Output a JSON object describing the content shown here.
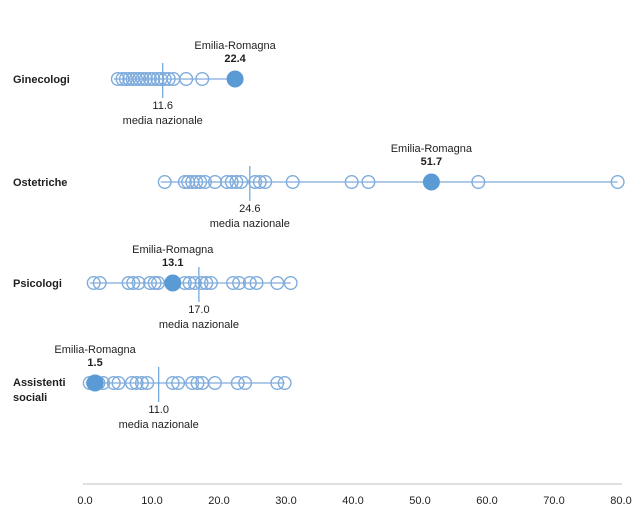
{
  "chart_data": {
    "type": "scatter",
    "subtype": "dot-strip-plot",
    "title": "",
    "highlight_series_name": "Emilia-Romagna",
    "mean_caption": "media nazionale",
    "x_axis": {
      "min": 0,
      "max": 80,
      "tick_step": 10,
      "tick_labels": [
        "0.0",
        "10.0",
        "20.0",
        "30.0",
        "40.0",
        "50.0",
        "60.0",
        "70.0",
        "80.0"
      ],
      "grid": false
    },
    "legend_position": "none",
    "colors": {
      "open_dot_stroke": "#7facdc",
      "row_line": "#7facdc",
      "mean_tick": "#5b9bd5",
      "highlight_fill": "#5b9bd5",
      "axis_line": "#bfbfbf",
      "text": "#1f1f1f"
    },
    "rows": [
      {
        "label_lines": [
          "Ginecologi"
        ],
        "highlight_name": "Emilia-Romagna",
        "highlight_value": 22.4,
        "highlight_label": "22.4",
        "mean_value": 11.6,
        "mean_label": "11.6",
        "open_values": [
          4.9,
          5.6,
          6.1,
          6.6,
          7.1,
          7.6,
          8.1,
          8.6,
          9.1,
          9.7,
          10.2,
          10.8,
          11.3,
          11.9,
          12.5,
          13.2,
          15.1,
          17.5
        ]
      },
      {
        "label_lines": [
          "Ostetriche"
        ],
        "highlight_name": "Emilia-Romagna",
        "highlight_value": 51.7,
        "highlight_label": "51.7",
        "mean_value": 24.6,
        "mean_label": "24.6",
        "open_values": [
          11.9,
          14.9,
          15.4,
          16.0,
          16.6,
          17.2,
          17.9,
          19.4,
          21.2,
          21.9,
          22.6,
          23.3,
          25.4,
          26.1,
          26.9,
          31.0,
          39.8,
          42.3,
          58.7,
          79.5
        ]
      },
      {
        "label_lines": [
          "Psicologi"
        ],
        "highlight_name": "Emilia-Romagna",
        "highlight_value": 13.1,
        "highlight_label": "13.1",
        "mean_value": 17.0,
        "mean_label": "17.0",
        "open_values": [
          1.3,
          2.2,
          6.5,
          7.2,
          8.0,
          9.7,
          10.4,
          10.9,
          14.9,
          15.6,
          16.4,
          17.4,
          18.1,
          18.8,
          22.1,
          23.0,
          24.6,
          25.6,
          28.7,
          30.7
        ]
      },
      {
        "label_lines": [
          "Assistenti",
          "sociali"
        ],
        "highlight_name": "Emilia-Romagna",
        "highlight_value": 1.5,
        "highlight_label": "1.5",
        "mean_value": 11.0,
        "mean_label": "11.0",
        "open_values": [
          0.7,
          1.2,
          2.0,
          2.7,
          4.3,
          5.0,
          7.0,
          7.7,
          8.5,
          9.3,
          13.1,
          13.9,
          16.0,
          16.8,
          17.5,
          19.4,
          22.8,
          23.9,
          28.7,
          29.8
        ]
      }
    ]
  }
}
